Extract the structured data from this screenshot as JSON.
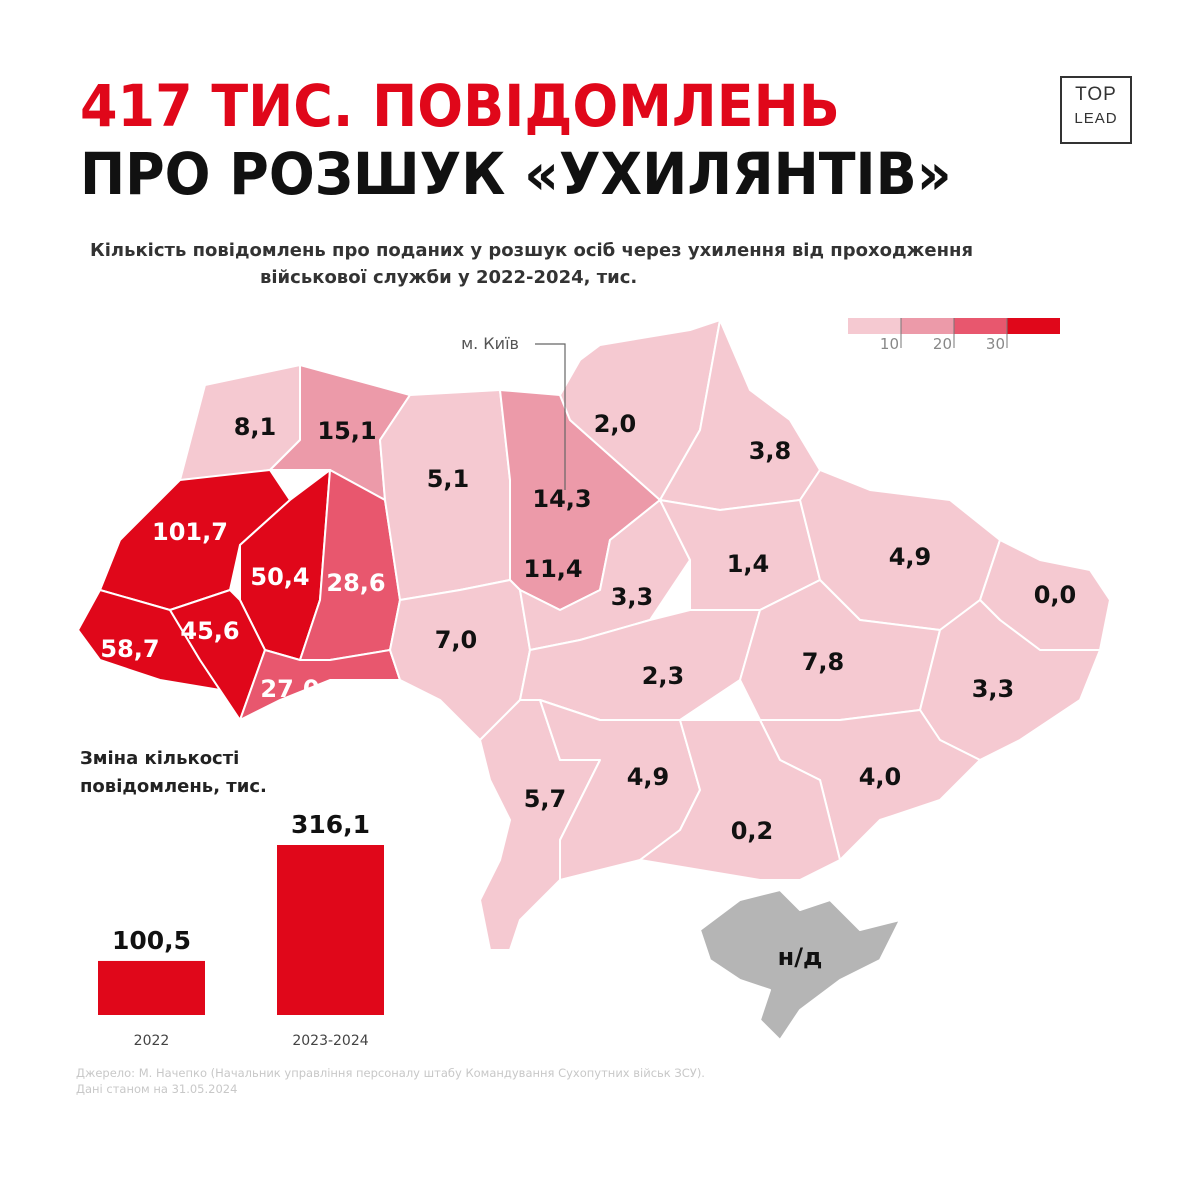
{
  "header": {
    "title_line1": "417 ТИС. ПОВІДОМЛЕНЬ",
    "title_line2": "ПРО РОЗШУК «УХИЛЯНТІВ»",
    "subtitle_line1": "Кількість повідомлень про поданих у розшук осіб через ухилення від проходження",
    "subtitle_line2": "військової служби у 2022-2024, тис.",
    "logo_top": "TOP",
    "logo_bottom": "LEAD"
  },
  "colors": {
    "accent": "#e0071a",
    "bin_0_10": "#f5c9d1",
    "bin_10_20": "#ec9aa9",
    "bin_20_30": "#e8576e",
    "bin_30_plus": "#e0071a",
    "no_data": "#b5b5b5"
  },
  "legend": {
    "ticks": [
      "10",
      "20",
      "30"
    ]
  },
  "map": {
    "kyiv_callout": "м. Київ",
    "regions": [
      {
        "id": "volyn",
        "label": "8,1",
        "value": 8.1
      },
      {
        "id": "rivne",
        "label": "15,1",
        "value": 15.1
      },
      {
        "id": "lviv",
        "label": "101,7",
        "value": 101.7
      },
      {
        "id": "ternopil",
        "label": "50,4",
        "value": 50.4
      },
      {
        "id": "khmelnytskyi",
        "label": "28,6",
        "value": 28.6
      },
      {
        "id": "zakarpattia",
        "label": "58,7",
        "value": 58.7
      },
      {
        "id": "ivano-frankivsk",
        "label": "45,6",
        "value": 45.6
      },
      {
        "id": "chernivtsi",
        "label": "27,0",
        "value": 27.0
      },
      {
        "id": "zhytomyr",
        "label": "5,1",
        "value": 5.1
      },
      {
        "id": "kyiv-city",
        "label": "14,3",
        "value": 14.3
      },
      {
        "id": "kyiv-oblast",
        "label": "11,4",
        "value": 11.4
      },
      {
        "id": "chernihiv",
        "label": "2,0",
        "value": 2.0
      },
      {
        "id": "sumy",
        "label": "3,8",
        "value": 3.8
      },
      {
        "id": "vinnytsia",
        "label": "7,0",
        "value": 7.0
      },
      {
        "id": "cherkasy",
        "label": "3,3",
        "value": 3.3
      },
      {
        "id": "poltava",
        "label": "1,4",
        "value": 1.4
      },
      {
        "id": "kharkiv",
        "label": "4,9",
        "value": 4.9
      },
      {
        "id": "luhansk",
        "label": "0,0",
        "value": 0.0
      },
      {
        "id": "kirovohrad",
        "label": "2,3",
        "value": 2.3
      },
      {
        "id": "dnipro",
        "label": "7,8",
        "value": 7.8
      },
      {
        "id": "donetsk",
        "label": "3,3",
        "value": 3.3
      },
      {
        "id": "odesa",
        "label": "5,7",
        "value": 5.7
      },
      {
        "id": "mykolaiv",
        "label": "4,9",
        "value": 4.9
      },
      {
        "id": "zaporizhzhia",
        "label": "4,0",
        "value": 4.0
      },
      {
        "id": "kherson",
        "label": "0,2",
        "value": 0.2
      },
      {
        "id": "crimea",
        "label": "н/д",
        "value": null
      }
    ]
  },
  "chart_data": {
    "type": "bar",
    "title": "Зміна кількості повідомлень, тис.",
    "categories": [
      "2022",
      "2023-2024"
    ],
    "values": [
      100.5,
      316.1
    ],
    "value_labels": [
      "100,5",
      "316,1"
    ]
  },
  "bar_chart": {
    "title_line1": "Зміна кількості",
    "title_line2": "повідомлень, тис."
  },
  "footer": {
    "source": "Джерело: М. Начепко (Начальник управління персоналу штабу Командування Сухопутних військ ЗСУ).",
    "date_note": "Дані станом на 31.05.2024"
  }
}
